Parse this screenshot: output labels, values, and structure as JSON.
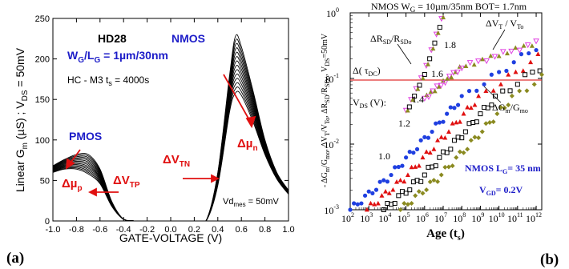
{
  "colors": {
    "nmos_label": "#1c1cc8",
    "pmos_label": "#1c1cc8",
    "red": "#e01010",
    "black": "#000000",
    "blue_dot": "#1f3fe0",
    "magenta": "#e040e0",
    "olive": "#8a8a20",
    "hline": "#e03030"
  },
  "panel_a": {
    "label": "(a)",
    "device": "HD28",
    "wg_lg": "W",
    "wg_lg_sub1": "G",
    "wg_lg_mid": "/L",
    "wg_lg_sub2": "G",
    "wg_lg_val": " = 1µm/30nm",
    "stress": "HC - M3  t",
    "stress_sub": "s",
    "stress_val": " = 4000s",
    "nmos": "NMOS",
    "pmos": "PMOS",
    "mu_n": "Δµ",
    "mu_n_sub": "n",
    "mu_p": "Δµ",
    "mu_p_sub": "p",
    "vtn": "ΔV",
    "vtn_sub": "TN",
    "vtp": "ΔV",
    "vtp_sub": "TP",
    "vd_mes": "Vd",
    "vd_mes_sub": "mes",
    "vd_mes_val": " = 50mV",
    "ylabel": "Linear G",
    "ylabel_sub1": "m",
    "ylabel_mid": "  (µS)  ;  V",
    "ylabel_sub2": "DS",
    "ylabel_tail": " = 50mV",
    "xlabel": "GATE-VOLTAGE (V)",
    "xticks": [
      "-1.0",
      "-0.8",
      "-0.6",
      "-0.4",
      "-0.2",
      "0.0",
      "0.2",
      "0.4",
      "0.6",
      "0.8",
      "1.0"
    ],
    "yticks": [
      "0",
      "50",
      "100",
      "150",
      "200",
      "250"
    ]
  },
  "panel_b": {
    "label": "(b)",
    "title": "NMOS W",
    "title_sub1": "G",
    "title_mid": " = 10µm/35nm BOT= 1.7nm",
    "xlabel": "Age (t",
    "xlabel_sub": "s",
    "xlabel_tail": ")",
    "ylabel": "- ΔG",
    "ylabel_parts": [
      "m",
      "/G",
      "mo",
      ", ΔV",
      "T",
      "/V",
      "To",
      ", ΔR",
      "SD",
      "/R",
      "SDo",
      ",  V",
      "DS",
      "=50mV"
    ],
    "xtick_exponents": [
      "2",
      "3",
      "4",
      "5",
      "6",
      "7",
      "8",
      "9",
      "10",
      "11",
      "12"
    ],
    "ytick_exponents": [
      "-3",
      "-2",
      "-1",
      "0"
    ],
    "ann_rsd": "ΔR",
    "ann_rsd_sub": "SD",
    "ann_rsd_mid": "/R",
    "ann_rsd_sub2": "SDo",
    "ann_vt": "ΔV",
    "ann_vt_sub": "T",
    "ann_vt_mid": " / V",
    "ann_vt_sub2": "To",
    "ann_tau": "Δ( τ",
    "ann_tau_sub": "DC",
    "ann_tau_tail": ")",
    "ann_vds": "V",
    "ann_vds_sub": "DS",
    "ann_vds_tail": " (V):",
    "ann_gm": "ΔG",
    "ann_gm_sub": "m",
    "ann_gm_mid": "/G",
    "ann_gm_sub2": "mo",
    "vds_values": [
      "1.8",
      "1.6",
      "1.4",
      "1.2",
      "1.0"
    ],
    "nmos_lg": "NMOS L",
    "nmos_lg_sub": "G",
    "nmos_lg_val": "= 35 nm",
    "vgd": "V",
    "vgd_sub": "GD",
    "vgd_val": "= 0.2V"
  },
  "chart_data": [
    {
      "type": "line",
      "title": "",
      "xlabel": "GATE-VOLTAGE (V)",
      "ylabel": "Linear Gm (µS) ; VDS = 50mV",
      "xlim": [
        -1.0,
        1.0
      ],
      "ylim": [
        0,
        250
      ],
      "grid": false,
      "series": [
        {
          "name": "",
          "x": [
            -1.0,
            -0.9,
            -0.8,
            -0.7,
            -0.6,
            -0.5,
            -0.4,
            -0.3,
            0.0,
            0.2,
            0.3,
            0.4,
            0.5,
            0.55,
            0.6,
            0.7,
            0.8,
            0.9,
            1.0
          ],
          "values": [
            68,
            76,
            82,
            82,
            64,
            24,
            2,
            0,
            0,
            0,
            0,
            60,
            180,
            228,
            215,
            160,
            100,
            60,
            38
          ]
        },
        {
          "name": "",
          "x": [
            -1.0,
            -0.9,
            -0.8,
            -0.7,
            -0.6,
            -0.5,
            -0.4,
            -0.3,
            0.0,
            0.2,
            0.3,
            0.4,
            0.5,
            0.55,
            0.6,
            0.7,
            0.8,
            0.9,
            1.0
          ],
          "values": [
            65,
            72,
            76,
            74,
            58,
            22,
            2,
            0,
            0,
            0,
            0,
            55,
            165,
            205,
            196,
            148,
            95,
            58,
            36
          ]
        },
        {
          "name": "",
          "x": [
            -1.0,
            -0.9,
            -0.8,
            -0.7,
            -0.6,
            -0.5,
            -0.4,
            -0.3,
            0.0,
            0.2,
            0.3,
            0.4,
            0.5,
            0.55,
            0.6,
            0.7,
            0.8,
            0.9,
            1.0
          ],
          "values": [
            62,
            68,
            70,
            66,
            52,
            20,
            2,
            0,
            0,
            0,
            0,
            50,
            150,
            182,
            176,
            135,
            88,
            55,
            34
          ]
        },
        {
          "name": "",
          "x": [
            -1.0,
            -0.9,
            -0.8,
            -0.7,
            -0.6,
            -0.5,
            -0.4,
            -0.3,
            0.0,
            0.2,
            0.3,
            0.4,
            0.5,
            0.55,
            0.6,
            0.7,
            0.8,
            0.9,
            1.0
          ],
          "values": [
            60,
            64,
            64,
            58,
            46,
            18,
            2,
            0,
            0,
            0,
            0,
            44,
            135,
            158,
            155,
            122,
            82,
            52,
            33
          ]
        }
      ]
    },
    {
      "type": "scatter",
      "title": "NMOS WG = 10µm/35nm BOT= 1.7nm",
      "xlabel": "Age (ts)",
      "ylabel": "- ΔGm/Gmo, ΔVT/VTo, ΔRSD/RSDo, VDS=50mV",
      "xscale": "log",
      "yscale": "log",
      "xlim": [
        100,
        1000000000000
      ],
      "ylim": [
        0.001,
        1
      ],
      "grid": false,
      "hline": 0.1,
      "series": [
        {
          "name": "ΔRSD/RSDo",
          "x": [
            100000,
            1000000,
            10000000
          ],
          "values": [
            0.03,
            0.12,
            0.9
          ]
        },
        {
          "name": "ΔVT/VTo",
          "x": [
            1000000,
            100000000,
            1000000000000
          ],
          "values": [
            0.05,
            0.15,
            0.35
          ]
        },
        {
          "name": "ΔGm/Gmo",
          "x": [
            100,
            10000,
            1000000,
            100000000,
            1000000000000
          ],
          "values": [
            0.001,
            0.003,
            0.012,
            0.05,
            0.3
          ]
        }
      ]
    }
  ]
}
